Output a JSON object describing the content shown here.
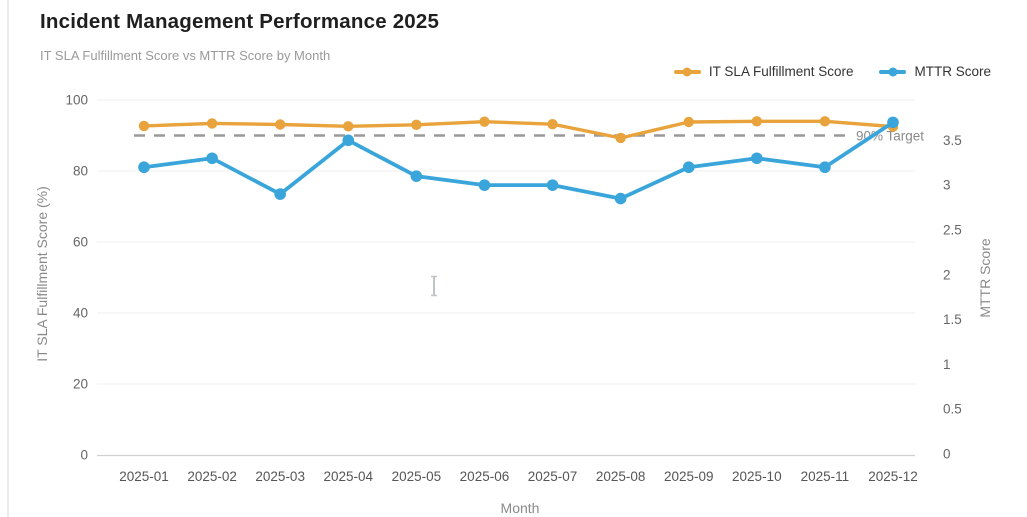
{
  "page": {
    "title": "Incident Management Performance 2025",
    "subtitle": "IT SLA Fulfillment Score vs MTTR Score by Month"
  },
  "legend": {
    "items": [
      {
        "label": "IT SLA Fulfillment Score",
        "color": "#E8A33C"
      },
      {
        "label": "MTTR Score",
        "color": "#3AA5DA"
      }
    ]
  },
  "chart_data": {
    "type": "line",
    "categories": [
      "2025-01",
      "2025-02",
      "2025-03",
      "2025-04",
      "2025-05",
      "2025-06",
      "2025-07",
      "2025-08",
      "2025-09",
      "2025-10",
      "2025-11",
      "2025-12"
    ],
    "series": [
      {
        "name": "IT SLA Fulfillment Score",
        "axis": "left",
        "color": "#E8A33C",
        "values": [
          92.7,
          93.4,
          93.1,
          92.6,
          93.0,
          93.9,
          93.2,
          89.3,
          93.8,
          94.0,
          94.0,
          92.5
        ]
      },
      {
        "name": "MTTR Score",
        "axis": "right",
        "color": "#3AA5DA",
        "values": [
          3.2,
          3.3,
          2.9,
          3.5,
          3.1,
          3.0,
          3.0,
          2.85,
          3.2,
          3.3,
          3.2,
          3.7
        ]
      }
    ],
    "xlabel": "Month",
    "y_left": {
      "label": "IT SLA Fulfillment Score (%)",
      "min": 0,
      "max": 100,
      "ticks": [
        0,
        20,
        40,
        60,
        80,
        100
      ]
    },
    "y_right": {
      "label": "MTTR Score",
      "min": 0,
      "max": 3.95,
      "ticks": [
        0,
        0.5,
        1,
        1.5,
        2,
        2.5,
        3,
        3.5
      ]
    },
    "target_line": {
      "value": 90,
      "axis": "left",
      "label": "90% Target",
      "color": "#999999",
      "style": "dashed"
    },
    "grid": true,
    "legend_position": "top-right",
    "colors": {
      "grid_line": "#efefef",
      "axis_line": "#d0d0d0",
      "tick_text": "#666666",
      "axis_title_text": "#8a8a8a",
      "target_label_text": "#8a8a8a"
    }
  },
  "cursor": {
    "type": "text-ibeam-cursor"
  }
}
